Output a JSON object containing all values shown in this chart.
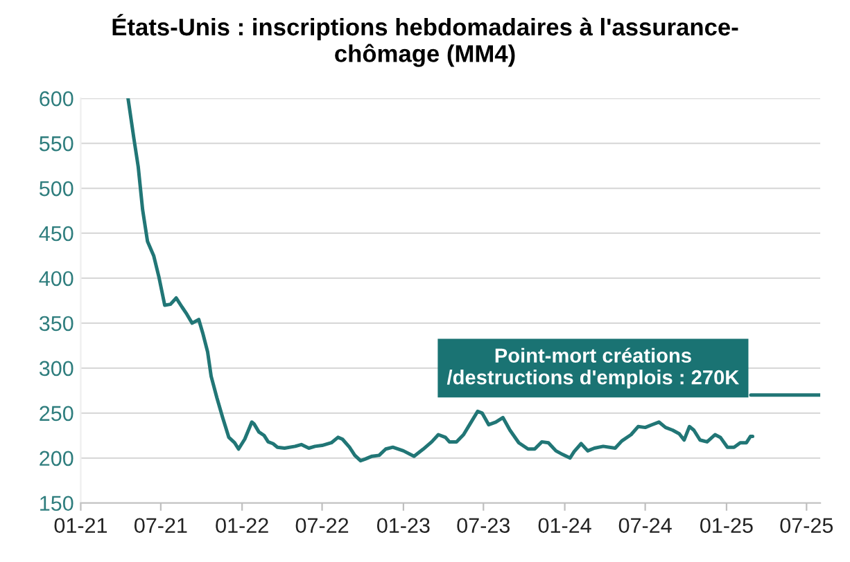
{
  "chart_data": {
    "type": "line",
    "title": "États-Unis : inscriptions hebdomadaires à l'assurance-\nchômage (MM4)",
    "series": [
      {
        "color": "#217676",
        "x": [
          "2021-04-18",
          "2021-05-01",
          "2021-05-11",
          "2021-05-21",
          "2021-06-01",
          "2021-06-15",
          "2021-06-27",
          "2021-07-10",
          "2021-07-23",
          "2021-08-05",
          "2021-08-18",
          "2021-08-29",
          "2021-09-10",
          "2021-09-25",
          "2021-10-04",
          "2021-10-15",
          "2021-10-23",
          "2021-11-05",
          "2021-11-18",
          "2021-12-02",
          "2021-12-15",
          "2021-12-24",
          "2022-01-07",
          "2022-01-23",
          "2022-01-28",
          "2022-02-08",
          "2022-02-20",
          "2022-03-01",
          "2022-03-12",
          "2022-03-22",
          "2022-04-07",
          "2022-05-01",
          "2022-05-15",
          "2022-06-01",
          "2022-06-15",
          "2022-07-01",
          "2022-07-22",
          "2022-08-06",
          "2022-08-16",
          "2022-09-01",
          "2022-09-13",
          "2022-09-26",
          "2022-10-07",
          "2022-10-22",
          "2022-11-07",
          "2022-11-22",
          "2022-12-08",
          "2023-01-01",
          "2023-01-25",
          "2023-02-15",
          "2023-03-06",
          "2023-03-21",
          "2023-04-06",
          "2023-04-15",
          "2023-05-01",
          "2023-05-17",
          "2023-06-02",
          "2023-06-18",
          "2023-06-28",
          "2023-07-13",
          "2023-07-29",
          "2023-08-14",
          "2023-08-30",
          "2023-09-19",
          "2023-10-10",
          "2023-10-25",
          "2023-11-10",
          "2023-11-25",
          "2023-12-12",
          "2023-12-27",
          "2024-01-13",
          "2024-01-22",
          "2024-02-07",
          "2024-02-22",
          "2024-03-08",
          "2024-03-28",
          "2024-04-24",
          "2024-05-09",
          "2024-05-30",
          "2024-06-15",
          "2024-07-01",
          "2024-07-16",
          "2024-08-01",
          "2024-08-16",
          "2024-09-01",
          "2024-09-16",
          "2024-09-27",
          "2024-10-09",
          "2024-10-19",
          "2024-11-02",
          "2024-11-18",
          "2024-12-06",
          "2024-12-18",
          "2025-01-03",
          "2025-01-18",
          "2025-02-01",
          "2025-02-15",
          "2025-02-24",
          "2025-03-01"
        ],
        "values": [
          600,
          556,
          524,
          476,
          441,
          425,
          401,
          370,
          371,
          378,
          368,
          360,
          350,
          354,
          339,
          318,
          291,
          267,
          245,
          223,
          217,
          210,
          221,
          240,
          238,
          229,
          225,
          218,
          216,
          212,
          211,
          213,
          215,
          211,
          213,
          214,
          217,
          223,
          221,
          212,
          203,
          197,
          199,
          202,
          203,
          210,
          212,
          208,
          202,
          210,
          218,
          226,
          223,
          218,
          218,
          226,
          239,
          252,
          250,
          237,
          240,
          245,
          231,
          217,
          210,
          210,
          218,
          217,
          208,
          204,
          200,
          207,
          216,
          208,
          211,
          213,
          211,
          219,
          226,
          235,
          234,
          237,
          240,
          234,
          231,
          227,
          220,
          235,
          231,
          220,
          218,
          226,
          223,
          212,
          212,
          217,
          217,
          224,
          224
        ]
      },
      {
        "color": "#217676",
        "x": [
          "2025-02-25",
          "2025-08-01"
        ],
        "values": [
          270,
          270
        ]
      }
    ],
    "xlim": [
      "2021-01-01",
      "2025-08-01"
    ],
    "xticks": [
      {
        "value": "2021-01-01",
        "label": "01-21"
      },
      {
        "value": "2021-07-01",
        "label": "07-21"
      },
      {
        "value": "2022-01-01",
        "label": "01-22"
      },
      {
        "value": "2022-07-01",
        "label": "07-22"
      },
      {
        "value": "2023-01-01",
        "label": "01-23"
      },
      {
        "value": "2023-07-01",
        "label": "07-23"
      },
      {
        "value": "2024-01-01",
        "label": "01-24"
      },
      {
        "value": "2024-07-01",
        "label": "07-24"
      },
      {
        "value": "2025-01-01",
        "label": "01-25"
      },
      {
        "value": "2025-07-01",
        "label": "07-25"
      }
    ],
    "ylim": [
      150,
      600
    ],
    "yticks": [
      150,
      200,
      250,
      300,
      350,
      400,
      450,
      500,
      550,
      600
    ],
    "grid": "y",
    "annotations": [
      {
        "text": "Point-mort créations\n/destructions d'emplois : 270K",
        "x": "2025-02-25",
        "y": 270
      }
    ]
  }
}
